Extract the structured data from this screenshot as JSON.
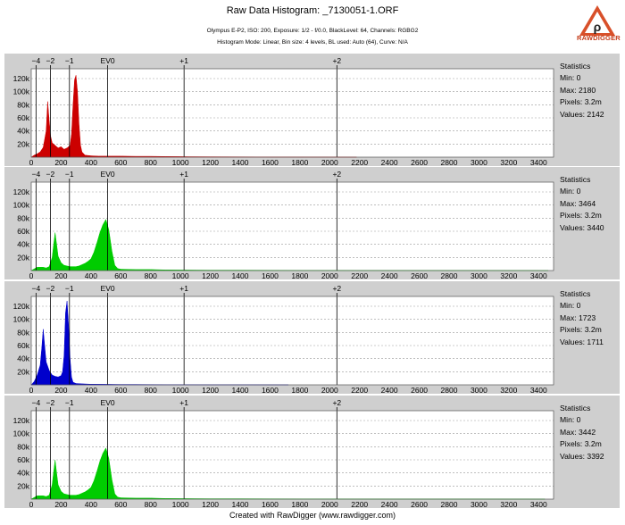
{
  "header": {
    "title": "Raw Data Histogram: _7130051-1.ORF",
    "info_line1": "Olympus E-P2, ISO: 200, Exposure: 1/2 - f/0.0, BlackLevel: 64, Channels: RGBG2",
    "info_line2": "Histogram Mode: Linear, Bin size: 4 levels, BL used: Auto (64), Curve: N/A",
    "logo_text": "RAWDIGGER"
  },
  "footer": {
    "text": "Created with RawDigger (www.rawdigger.com)"
  },
  "colors": {
    "red": "#cc0000",
    "green": "#00cc00",
    "blue": "#0000cc",
    "panel": "#cfcfcf",
    "plot": "#ffffff"
  },
  "chart_data": [
    {
      "type": "area",
      "channel": "R",
      "color": "#cc0000",
      "xlim": [
        0,
        3500
      ],
      "ylim": [
        0,
        135000
      ],
      "x_ticks": [
        0,
        200,
        400,
        600,
        800,
        1000,
        1200,
        1400,
        1600,
        1800,
        2000,
        2200,
        2400,
        2600,
        2800,
        3000,
        3200,
        3400
      ],
      "y_ticks": [
        20000,
        40000,
        60000,
        80000,
        100000,
        120000
      ],
      "y_tick_labels": [
        "20k",
        "40k",
        "60k",
        "80k",
        "100k",
        "120k"
      ],
      "ev_markers": [
        {
          "label": "−4",
          "x": 32
        },
        {
          "label": "−2",
          "x": 128
        },
        {
          "label": "−1",
          "x": 256
        },
        {
          "label": "EV0",
          "x": 512
        },
        {
          "label": "+1",
          "x": 1024
        },
        {
          "label": "+2",
          "x": 2048
        }
      ],
      "x": [
        0,
        20,
        40,
        60,
        80,
        100,
        110,
        120,
        130,
        140,
        160,
        180,
        200,
        220,
        240,
        260,
        270,
        280,
        290,
        300,
        310,
        320,
        330,
        340,
        360,
        400,
        450,
        500,
        600,
        700,
        800,
        900,
        1000,
        1050,
        1200,
        1400,
        1600,
        2000,
        2180
      ],
      "y": [
        0,
        3000,
        5000,
        8000,
        15000,
        40000,
        85000,
        55000,
        32000,
        22000,
        18000,
        14000,
        16000,
        12000,
        14000,
        18000,
        35000,
        80000,
        118000,
        125000,
        100000,
        50000,
        18000,
        8000,
        3000,
        2000,
        1500,
        1500,
        1500,
        1200,
        1200,
        1000,
        800,
        700,
        500,
        400,
        300,
        200,
        0
      ],
      "stats": {
        "heading": "Statistics",
        "min": "Min: 0",
        "max": "Max: 2180",
        "pixels": "Pixels: 3.2m",
        "values": "Values: 2142"
      }
    },
    {
      "type": "area",
      "channel": "G",
      "color": "#00cc00",
      "xlim": [
        0,
        3500
      ],
      "ylim": [
        0,
        135000
      ],
      "x_ticks": [
        0,
        200,
        400,
        600,
        800,
        1000,
        1200,
        1400,
        1600,
        1800,
        2000,
        2200,
        2400,
        2600,
        2800,
        3000,
        3200,
        3400
      ],
      "y_ticks": [
        20000,
        40000,
        60000,
        80000,
        100000,
        120000
      ],
      "y_tick_labels": [
        "20k",
        "40k",
        "60k",
        "80k",
        "100k",
        "120k"
      ],
      "ev_markers": [
        {
          "label": "−4",
          "x": 32
        },
        {
          "label": "−2",
          "x": 128
        },
        {
          "label": "−1",
          "x": 256
        },
        {
          "label": "EV0",
          "x": 512
        },
        {
          "label": "+1",
          "x": 1024
        },
        {
          "label": "+2",
          "x": 2048
        }
      ],
      "x": [
        0,
        40,
        80,
        100,
        120,
        140,
        160,
        170,
        180,
        200,
        220,
        240,
        260,
        280,
        300,
        320,
        340,
        360,
        380,
        400,
        420,
        440,
        460,
        480,
        500,
        520,
        540,
        560,
        580,
        600,
        700,
        800,
        900,
        1000,
        1200,
        1400,
        1600,
        2000,
        2400,
        3000,
        3464
      ],
      "y": [
        0,
        5000,
        5000,
        4000,
        6000,
        20000,
        58000,
        40000,
        22000,
        12000,
        8000,
        7000,
        6000,
        6000,
        6000,
        7000,
        9000,
        11000,
        14000,
        18000,
        28000,
        42000,
        58000,
        70000,
        78000,
        62000,
        30000,
        8000,
        3000,
        2000,
        1500,
        1500,
        1000,
        800,
        600,
        500,
        400,
        300,
        200,
        100,
        0
      ],
      "stats": {
        "heading": "Statistics",
        "min": "Min: 0",
        "max": "Max: 3464",
        "pixels": "Pixels: 3.2m",
        "values": "Values: 3440"
      }
    },
    {
      "type": "area",
      "channel": "B",
      "color": "#0000cc",
      "xlim": [
        0,
        3500
      ],
      "ylim": [
        0,
        135000
      ],
      "x_ticks": [
        0,
        200,
        400,
        600,
        800,
        1000,
        1200,
        1400,
        1600,
        1800,
        2000,
        2200,
        2400,
        2600,
        2800,
        3000,
        3200,
        3400
      ],
      "y_ticks": [
        20000,
        40000,
        60000,
        80000,
        100000,
        120000
      ],
      "y_tick_labels": [
        "20k",
        "40k",
        "60k",
        "80k",
        "100k",
        "120k"
      ],
      "ev_markers": [
        {
          "label": "−4",
          "x": 32
        },
        {
          "label": "−2",
          "x": 128
        },
        {
          "label": "−1",
          "x": 256
        },
        {
          "label": "EV0",
          "x": 512
        },
        {
          "label": "+1",
          "x": 1024
        },
        {
          "label": "+2",
          "x": 2048
        }
      ],
      "x": [
        0,
        20,
        40,
        60,
        70,
        80,
        90,
        100,
        120,
        140,
        160,
        180,
        200,
        210,
        220,
        230,
        240,
        250,
        260,
        270,
        280,
        300,
        340,
        400,
        500,
        600,
        700,
        800,
        1000,
        1200,
        1400,
        1723
      ],
      "y": [
        0,
        5000,
        15000,
        30000,
        55000,
        85000,
        60000,
        35000,
        22000,
        15000,
        13000,
        12000,
        14000,
        20000,
        45000,
        110000,
        128000,
        90000,
        40000,
        12000,
        4000,
        2000,
        1500,
        1000,
        800,
        600,
        500,
        400,
        300,
        200,
        100,
        0
      ],
      "stats": {
        "heading": "Statistics",
        "min": "Min: 0",
        "max": "Max: 1723",
        "pixels": "Pixels: 3.2m",
        "values": "Values: 1711"
      }
    },
    {
      "type": "area",
      "channel": "G2",
      "color": "#00cc00",
      "xlim": [
        0,
        3500
      ],
      "ylim": [
        0,
        135000
      ],
      "x_ticks": [
        0,
        200,
        400,
        600,
        800,
        1000,
        1200,
        1400,
        1600,
        1800,
        2000,
        2200,
        2400,
        2600,
        2800,
        3000,
        3200,
        3400
      ],
      "y_ticks": [
        20000,
        40000,
        60000,
        80000,
        100000,
        120000
      ],
      "y_tick_labels": [
        "20k",
        "40k",
        "60k",
        "80k",
        "100k",
        "120k"
      ],
      "ev_markers": [
        {
          "label": "−4",
          "x": 32
        },
        {
          "label": "−2",
          "x": 128
        },
        {
          "label": "−1",
          "x": 256
        },
        {
          "label": "EV0",
          "x": 512
        },
        {
          "label": "+1",
          "x": 1024
        },
        {
          "label": "+2",
          "x": 2048
        }
      ],
      "x": [
        0,
        40,
        80,
        100,
        120,
        140,
        160,
        170,
        180,
        200,
        220,
        240,
        260,
        280,
        300,
        320,
        340,
        360,
        380,
        400,
        420,
        440,
        460,
        480,
        500,
        520,
        540,
        560,
        580,
        600,
        700,
        800,
        900,
        1000,
        1200,
        1400,
        1600,
        2000,
        2400,
        3000,
        3442
      ],
      "y": [
        0,
        5000,
        5000,
        4000,
        6000,
        22000,
        60000,
        40000,
        22000,
        12000,
        8000,
        7000,
        6000,
        6000,
        6000,
        7000,
        9000,
        11000,
        14000,
        18000,
        28000,
        42000,
        58000,
        70000,
        78000,
        62000,
        30000,
        8000,
        3000,
        2000,
        1500,
        1500,
        1000,
        800,
        600,
        500,
        400,
        300,
        200,
        100,
        0
      ],
      "stats": {
        "heading": "Statistics",
        "min": "Min: 0",
        "max": "Max: 3442",
        "pixels": "Pixels: 3.2m",
        "values": "Values: 3392"
      }
    }
  ]
}
